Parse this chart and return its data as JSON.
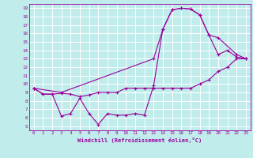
{
  "xlabel": "Windchill (Refroidissement éolien,°C)",
  "bg_color": "#c0ecec",
  "line_color": "#990099",
  "grid_color": "#ffffff",
  "xlim": [
    -0.5,
    23.5
  ],
  "ylim": [
    4.5,
    19.5
  ],
  "xticks": [
    0,
    1,
    2,
    3,
    4,
    5,
    6,
    7,
    8,
    9,
    10,
    11,
    12,
    13,
    14,
    15,
    16,
    17,
    18,
    19,
    20,
    21,
    22,
    23
  ],
  "yticks": [
    5,
    6,
    7,
    8,
    9,
    10,
    11,
    12,
    13,
    14,
    15,
    16,
    17,
    18,
    19
  ],
  "line1_x": [
    0,
    1,
    2,
    3,
    4,
    5,
    6,
    7,
    8,
    9,
    10,
    11,
    12,
    13,
    14,
    15,
    16,
    17,
    18,
    19,
    20,
    21,
    22,
    23
  ],
  "line1_y": [
    9.5,
    8.8,
    8.8,
    8.9,
    8.8,
    8.5,
    8.7,
    9.0,
    9.0,
    9.0,
    9.5,
    9.5,
    9.5,
    9.5,
    9.5,
    9.5,
    9.5,
    9.5,
    10.0,
    10.5,
    11.5,
    12.0,
    13.0,
    13.0
  ],
  "line2_x": [
    0,
    1,
    2,
    3,
    4,
    5,
    6,
    7,
    8,
    9,
    10,
    11,
    12,
    13,
    14,
    15,
    16,
    17,
    18,
    19,
    20,
    21,
    22,
    23
  ],
  "line2_y": [
    9.5,
    8.8,
    8.8,
    6.2,
    6.5,
    8.3,
    6.5,
    5.2,
    6.5,
    6.3,
    6.3,
    6.5,
    6.3,
    9.8,
    16.5,
    18.8,
    19.0,
    18.9,
    18.2,
    15.8,
    13.5,
    14.0,
    13.2,
    13.0
  ],
  "line3_x": [
    0,
    3,
    13,
    14,
    15,
    16,
    17,
    18,
    19,
    20,
    22,
    23
  ],
  "line3_y": [
    9.5,
    9.0,
    13.0,
    16.5,
    18.8,
    19.0,
    18.9,
    18.2,
    15.8,
    15.5,
    13.5,
    13.0
  ]
}
